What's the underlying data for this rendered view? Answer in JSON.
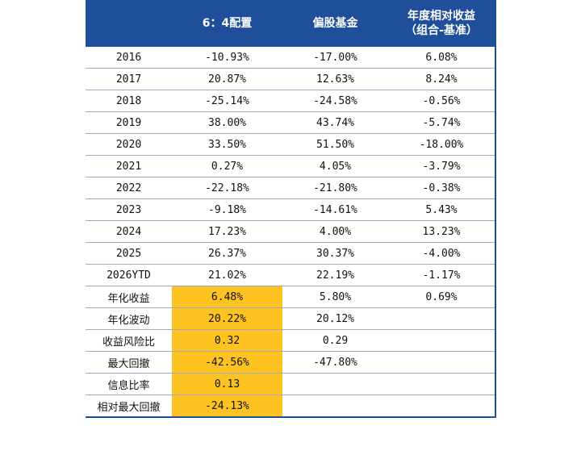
{
  "headers": {
    "label": "",
    "a": "6：4配置",
    "b": "偏股基金",
    "c_line1": "年度相对收益",
    "c_line2": "（组合-基准）"
  },
  "colors": {
    "header_bg": "#1f4e9b",
    "highlight": "#fec321",
    "border": "#1f4e9b"
  },
  "years": [
    {
      "label": "2016",
      "a": "-10.93%",
      "b": "-17.00%",
      "c": "6.08%"
    },
    {
      "label": "2017",
      "a": "20.87%",
      "b": "12.63%",
      "c": "8.24%"
    },
    {
      "label": "2018",
      "a": "-25.14%",
      "b": "-24.58%",
      "c": "-0.56%"
    },
    {
      "label": "2019",
      "a": "38.00%",
      "b": "43.74%",
      "c": "-5.74%"
    },
    {
      "label": "2020",
      "a": "33.50%",
      "b": "51.50%",
      "c": "-18.00%"
    },
    {
      "label": "2021",
      "a": "0.27%",
      "b": "4.05%",
      "c": "-3.79%"
    },
    {
      "label": "2022",
      "a": "-22.18%",
      "b": "-21.80%",
      "c": "-0.38%"
    },
    {
      "label": "2023",
      "a": "-9.18%",
      "b": "-14.61%",
      "c": "5.43%"
    },
    {
      "label": "2024",
      "a": "17.23%",
      "b": "4.00%",
      "c": "13.23%"
    },
    {
      "label": "2025",
      "a": "26.37%",
      "b": "30.37%",
      "c": "-4.00%"
    },
    {
      "label": "2026YTD",
      "a": "21.02%",
      "b": "22.19%",
      "c": "-1.17%"
    }
  ],
  "stats": [
    {
      "label": "年化收益",
      "a": "6.48%",
      "b": "5.80%",
      "c": "0.69%"
    },
    {
      "label": "年化波动",
      "a": "20.22%",
      "b": "20.12%",
      "c": ""
    },
    {
      "label": "收益风险比",
      "a": "0.32",
      "b": "0.29",
      "c": ""
    },
    {
      "label": "最大回撤",
      "a": "-42.56%",
      "b": "-47.80%",
      "c": ""
    },
    {
      "label": "信息比率",
      "a": "0.13",
      "b": "",
      "c": ""
    },
    {
      "label": "相对最大回撤",
      "a": "-24.13%",
      "b": "",
      "c": ""
    }
  ]
}
